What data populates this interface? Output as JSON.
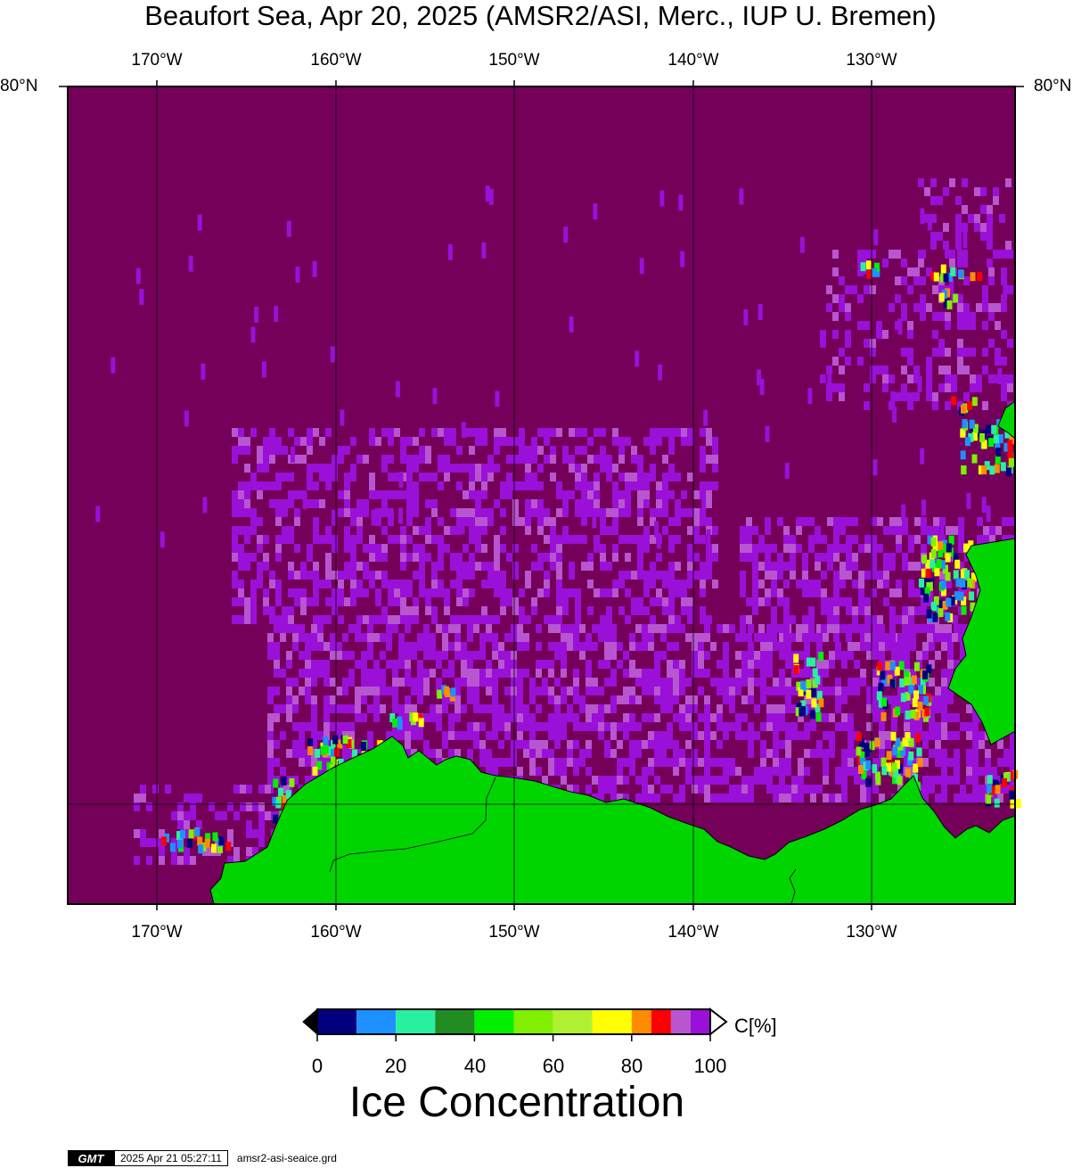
{
  "title": "Beaufort Sea, Apr 20, 2025 (AMSR2/ASI, Merc., IUP U. Bremen)",
  "map": {
    "lon_labels": [
      "170°W",
      "160°W",
      "150°W",
      "140°W",
      "130°W"
    ],
    "lat_label": "80°N",
    "colors": {
      "ocean_open": "#74005a",
      "ice_high": "#9a10d8",
      "ice_light": "#b856d0",
      "land": "#00d500"
    }
  },
  "colorbar": {
    "ticks": [
      "0",
      "20",
      "40",
      "60",
      "80",
      "100"
    ],
    "unit": "C[%]",
    "label": "Ice Concentration",
    "colors": [
      "#000080",
      "#1e90ff",
      "#28f0a0",
      "#228b22",
      "#00f000",
      "#80f000",
      "#b0f030",
      "#ffff00",
      "#ff8c00",
      "#ff0000",
      "#b856d0",
      "#9a10d8"
    ]
  },
  "footer": {
    "logo": "GMT",
    "timestamp": "2025 Apr 21 05:27:11",
    "filename": "amsr2-asi-seaice.grd"
  }
}
